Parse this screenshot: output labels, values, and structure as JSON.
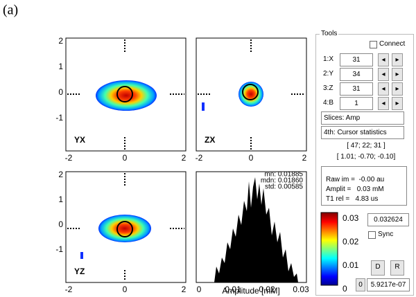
{
  "figure_label": "(a)",
  "panels": [
    {
      "label": "YX",
      "xticks": [
        "-2",
        "0",
        "2"
      ],
      "yticks": [
        "2",
        "1",
        "0",
        "-1"
      ]
    },
    {
      "label": "ZX",
      "xticks": [
        "-2",
        "0",
        "2"
      ],
      "yticks": []
    },
    {
      "label": "YZ",
      "xticks": [
        "-2",
        "0",
        "2"
      ],
      "yticks": [
        "2",
        "1",
        "0",
        "-1"
      ]
    }
  ],
  "histogram": {
    "stats": [
      "mn: 0.01885",
      "mdn: 0.01860",
      "std: 0.00585"
    ],
    "xticks": [
      "0",
      "0.01",
      "0.02",
      "0.03"
    ],
    "xlabel": "Amplitude [mM]"
  },
  "tools": {
    "title": "Tools",
    "connect": "Connect",
    "rows": [
      {
        "label": "1:X",
        "value": "31"
      },
      {
        "label": "2:Y",
        "value": "34"
      },
      {
        "label": "3:Z",
        "value": "31"
      },
      {
        "label": "4:B",
        "value": "1"
      }
    ],
    "slices": "Slices: Amp",
    "fourth": "4th: Cursor statistics",
    "index": "[ 47; 22; 31 ]",
    "position": "[ 1.01; -0.70; -0.10]",
    "list": [
      "Raw im =  -0.00 au",
      "Amplit =   0.03 mM",
      "T1 rel =   4.83 us"
    ],
    "colorbar_ticks": [
      "0.03",
      "0.02",
      "0.01",
      "0"
    ],
    "max_value": "0.032624",
    "sync": "Sync",
    "button_d": "D",
    "button_r": "R",
    "min_button": "0",
    "min_value": "5.9217e-07"
  }
}
